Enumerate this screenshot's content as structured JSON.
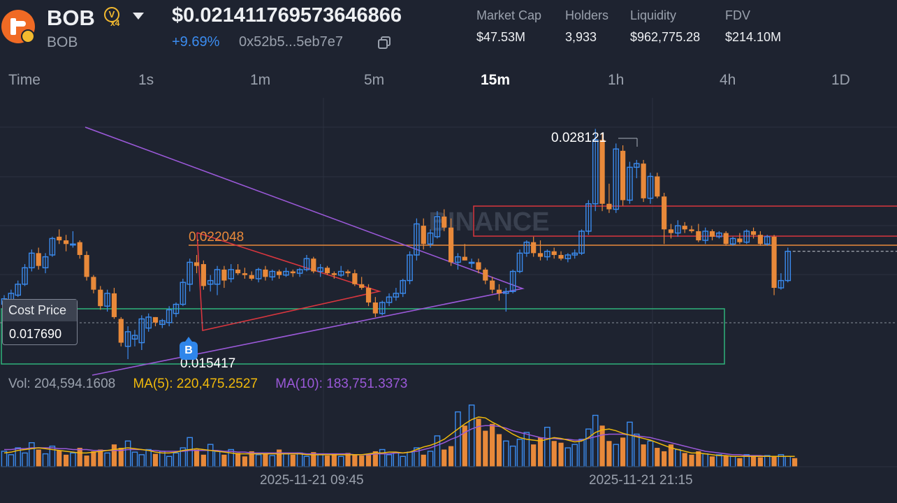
{
  "header": {
    "symbol": "BOB",
    "name": "BOB",
    "badge_v": "V",
    "badge_mult": "x4",
    "price": "$0.0214117695736468​66",
    "change": "+9.69%",
    "address": "0x52b5...5eb7e7",
    "icons": {
      "logo": "token-logo-icon",
      "dropdown": "chevron-down-icon",
      "copy": "copy-icon"
    },
    "stats": [
      {
        "label": "Market Cap",
        "value": "$47.53M"
      },
      {
        "label": "Holders",
        "value": "3,933"
      },
      {
        "label": "Liquidity",
        "value": "$962,775.28"
      },
      {
        "label": "FDV",
        "value": "$214.10M"
      }
    ]
  },
  "tabs": [
    {
      "label": "Time",
      "active": false
    },
    {
      "label": "1s",
      "active": false
    },
    {
      "label": "1m",
      "active": false
    },
    {
      "label": "5m",
      "active": false
    },
    {
      "label": "15m",
      "active": true
    },
    {
      "label": "1h",
      "active": false
    },
    {
      "label": "4h",
      "active": false
    },
    {
      "label": "1D",
      "active": false
    }
  ],
  "chart_data": {
    "type": "candlestick",
    "watermark": "BINANCE",
    "ylim": [
      0.0147,
      0.0298
    ],
    "up_color": "#3b8cf0",
    "down_color": "#e8893a",
    "cost_price": {
      "label": "Cost Price",
      "value": "0.017690",
      "level": 0.01769
    },
    "annotations": {
      "high": "0.028121",
      "low": "0.015417",
      "level": "0.022048"
    },
    "buy_marker": "B",
    "x_labels": [
      "2025-11-21 09:45",
      "2025-11-21 21:15"
    ],
    "volume_legend": {
      "vol": "Vol: 204,594.1608",
      "ma5": "MA(5): 220,475.2527",
      "ma10": "MA(10): 183,751.3373",
      "ma5_color": "#f0b90b",
      "ma10_color": "#9b59d9"
    },
    "candles": [
      {
        "o": 0.0185,
        "h": 0.019,
        "l": 0.0184,
        "c": 0.0188
      },
      {
        "o": 0.0187,
        "h": 0.0193,
        "l": 0.0186,
        "c": 0.0191
      },
      {
        "o": 0.019,
        "h": 0.0198,
        "l": 0.0189,
        "c": 0.0196
      },
      {
        "o": 0.0196,
        "h": 0.0207,
        "l": 0.0195,
        "c": 0.0205
      },
      {
        "o": 0.0205,
        "h": 0.0215,
        "l": 0.0203,
        "c": 0.0213
      },
      {
        "o": 0.0213,
        "h": 0.0216,
        "l": 0.0204,
        "c": 0.0206
      },
      {
        "o": 0.0205,
        "h": 0.0213,
        "l": 0.0202,
        "c": 0.0211
      },
      {
        "o": 0.0212,
        "h": 0.0222,
        "l": 0.0211,
        "c": 0.0221
      },
      {
        "o": 0.0222,
        "h": 0.0226,
        "l": 0.0218,
        "c": 0.022
      },
      {
        "o": 0.022,
        "h": 0.0223,
        "l": 0.0214,
        "c": 0.0218
      },
      {
        "o": 0.0218,
        "h": 0.0225,
        "l": 0.0216,
        "c": 0.0218
      },
      {
        "o": 0.0219,
        "h": 0.022,
        "l": 0.021,
        "c": 0.0212
      },
      {
        "o": 0.0212,
        "h": 0.0214,
        "l": 0.0198,
        "c": 0.02
      },
      {
        "o": 0.02,
        "h": 0.0201,
        "l": 0.0191,
        "c": 0.0193
      },
      {
        "o": 0.0193,
        "h": 0.0195,
        "l": 0.0182,
        "c": 0.0184
      },
      {
        "o": 0.0184,
        "h": 0.0193,
        "l": 0.0181,
        "c": 0.0191
      },
      {
        "o": 0.0191,
        "h": 0.0194,
        "l": 0.0177,
        "c": 0.0178
      },
      {
        "o": 0.0177,
        "h": 0.0178,
        "l": 0.0162,
        "c": 0.0164
      },
      {
        "o": 0.0162,
        "h": 0.0173,
        "l": 0.0155,
        "c": 0.017
      },
      {
        "o": 0.0166,
        "h": 0.0171,
        "l": 0.0162,
        "c": 0.0168
      },
      {
        "o": 0.0164,
        "h": 0.0179,
        "l": 0.016,
        "c": 0.0177
      },
      {
        "o": 0.0172,
        "h": 0.018,
        "l": 0.017,
        "c": 0.0178
      },
      {
        "o": 0.0178,
        "h": 0.0178,
        "l": 0.0173,
        "c": 0.0175
      },
      {
        "o": 0.0174,
        "h": 0.0177,
        "l": 0.0172,
        "c": 0.0176
      },
      {
        "o": 0.0175,
        "h": 0.0184,
        "l": 0.0173,
        "c": 0.0182
      },
      {
        "o": 0.018,
        "h": 0.0186,
        "l": 0.0178,
        "c": 0.0185
      },
      {
        "o": 0.0185,
        "h": 0.0199,
        "l": 0.0184,
        "c": 0.0197
      },
      {
        "o": 0.0196,
        "h": 0.021,
        "l": 0.0192,
        "c": 0.0208
      },
      {
        "o": 0.0208,
        "h": 0.0212,
        "l": 0.0202,
        "c": 0.0206
      },
      {
        "o": 0.0207,
        "h": 0.0209,
        "l": 0.0193,
        "c": 0.0195
      },
      {
        "o": 0.0196,
        "h": 0.0201,
        "l": 0.0192,
        "c": 0.0198
      },
      {
        "o": 0.0196,
        "h": 0.0206,
        "l": 0.019,
        "c": 0.0204
      },
      {
        "o": 0.0204,
        "h": 0.0206,
        "l": 0.0194,
        "c": 0.0198
      },
      {
        "o": 0.0199,
        "h": 0.0207,
        "l": 0.0197,
        "c": 0.0204
      },
      {
        "o": 0.0204,
        "h": 0.0207,
        "l": 0.0201,
        "c": 0.0202
      },
      {
        "o": 0.0202,
        "h": 0.0205,
        "l": 0.0199,
        "c": 0.0201
      },
      {
        "o": 0.0201,
        "h": 0.0203,
        "l": 0.0198,
        "c": 0.0199
      },
      {
        "o": 0.0199,
        "h": 0.0205,
        "l": 0.0197,
        "c": 0.0204
      },
      {
        "o": 0.0204,
        "h": 0.0206,
        "l": 0.0198,
        "c": 0.02
      },
      {
        "o": 0.02,
        "h": 0.0204,
        "l": 0.0198,
        "c": 0.0203
      },
      {
        "o": 0.0203,
        "h": 0.0204,
        "l": 0.0199,
        "c": 0.0201
      },
      {
        "o": 0.0201,
        "h": 0.0205,
        "l": 0.02,
        "c": 0.0203
      },
      {
        "o": 0.0203,
        "h": 0.0204,
        "l": 0.02,
        "c": 0.0202
      },
      {
        "o": 0.0202,
        "h": 0.0205,
        "l": 0.02,
        "c": 0.0204
      },
      {
        "o": 0.0204,
        "h": 0.0212,
        "l": 0.0203,
        "c": 0.021
      },
      {
        "o": 0.021,
        "h": 0.0211,
        "l": 0.0202,
        "c": 0.0203
      },
      {
        "o": 0.0203,
        "h": 0.0207,
        "l": 0.02,
        "c": 0.0205
      },
      {
        "o": 0.0205,
        "h": 0.0206,
        "l": 0.0201,
        "c": 0.0202
      },
      {
        "o": 0.0202,
        "h": 0.0203,
        "l": 0.0199,
        "c": 0.0201
      },
      {
        "o": 0.0201,
        "h": 0.0206,
        "l": 0.02,
        "c": 0.0203
      },
      {
        "o": 0.0203,
        "h": 0.0204,
        "l": 0.02,
        "c": 0.0202
      },
      {
        "o": 0.0202,
        "h": 0.0204,
        "l": 0.0195,
        "c": 0.0196
      },
      {
        "o": 0.0196,
        "h": 0.02,
        "l": 0.0193,
        "c": 0.0194
      },
      {
        "o": 0.0194,
        "h": 0.0196,
        "l": 0.0184,
        "c": 0.0186
      },
      {
        "o": 0.0186,
        "h": 0.0189,
        "l": 0.0178,
        "c": 0.018
      },
      {
        "o": 0.018,
        "h": 0.0187,
        "l": 0.0179,
        "c": 0.0186
      },
      {
        "o": 0.0186,
        "h": 0.0191,
        "l": 0.0184,
        "c": 0.0189
      },
      {
        "o": 0.0189,
        "h": 0.0194,
        "l": 0.0187,
        "c": 0.0191
      },
      {
        "o": 0.0191,
        "h": 0.0199,
        "l": 0.0189,
        "c": 0.0198
      },
      {
        "o": 0.0198,
        "h": 0.0214,
        "l": 0.0196,
        "c": 0.0212
      },
      {
        "o": 0.0212,
        "h": 0.0232,
        "l": 0.0209,
        "c": 0.0229
      },
      {
        "o": 0.0228,
        "h": 0.0232,
        "l": 0.0215,
        "c": 0.0218
      },
      {
        "o": 0.0218,
        "h": 0.0226,
        "l": 0.0216,
        "c": 0.0224
      },
      {
        "o": 0.0222,
        "h": 0.0236,
        "l": 0.0221,
        "c": 0.0233
      },
      {
        "o": 0.0233,
        "h": 0.0237,
        "l": 0.0225,
        "c": 0.0227
      },
      {
        "o": 0.0227,
        "h": 0.0232,
        "l": 0.0206,
        "c": 0.0208
      },
      {
        "o": 0.0208,
        "h": 0.0213,
        "l": 0.0204,
        "c": 0.0211
      },
      {
        "o": 0.0211,
        "h": 0.0218,
        "l": 0.0209,
        "c": 0.0209
      },
      {
        "o": 0.0208,
        "h": 0.021,
        "l": 0.0205,
        "c": 0.0208
      },
      {
        "o": 0.0208,
        "h": 0.021,
        "l": 0.0202,
        "c": 0.0204
      },
      {
        "o": 0.0204,
        "h": 0.0205,
        "l": 0.0196,
        "c": 0.0198
      },
      {
        "o": 0.0198,
        "h": 0.02,
        "l": 0.0191,
        "c": 0.0193
      },
      {
        "o": 0.0193,
        "h": 0.0196,
        "l": 0.0187,
        "c": 0.0191
      },
      {
        "o": 0.0191,
        "h": 0.0194,
        "l": 0.0181,
        "c": 0.0192
      },
      {
        "o": 0.0192,
        "h": 0.0204,
        "l": 0.0191,
        "c": 0.0203
      },
      {
        "o": 0.0203,
        "h": 0.0215,
        "l": 0.0202,
        "c": 0.0213
      },
      {
        "o": 0.0213,
        "h": 0.022,
        "l": 0.0211,
        "c": 0.0219
      },
      {
        "o": 0.0219,
        "h": 0.0222,
        "l": 0.0211,
        "c": 0.0213
      },
      {
        "o": 0.0213,
        "h": 0.022,
        "l": 0.0209,
        "c": 0.0211
      },
      {
        "o": 0.0211,
        "h": 0.0215,
        "l": 0.0209,
        "c": 0.0214
      },
      {
        "o": 0.0214,
        "h": 0.0216,
        "l": 0.021,
        "c": 0.0212
      },
      {
        "o": 0.0212,
        "h": 0.0214,
        "l": 0.0209,
        "c": 0.021
      },
      {
        "o": 0.021,
        "h": 0.0213,
        "l": 0.0208,
        "c": 0.0212
      },
      {
        "o": 0.0212,
        "h": 0.0215,
        "l": 0.021,
        "c": 0.0213
      },
      {
        "o": 0.0213,
        "h": 0.0226,
        "l": 0.0212,
        "c": 0.0225
      },
      {
        "o": 0.0225,
        "h": 0.0242,
        "l": 0.0223,
        "c": 0.024
      },
      {
        "o": 0.024,
        "h": 0.0281,
        "l": 0.0236,
        "c": 0.0275
      },
      {
        "o": 0.0275,
        "h": 0.0279,
        "l": 0.0236,
        "c": 0.024
      },
      {
        "o": 0.024,
        "h": 0.0251,
        "l": 0.0235,
        "c": 0.0237
      },
      {
        "o": 0.0237,
        "h": 0.0273,
        "l": 0.0235,
        "c": 0.027
      },
      {
        "o": 0.0269,
        "h": 0.0272,
        "l": 0.0239,
        "c": 0.0242
      },
      {
        "o": 0.0242,
        "h": 0.0263,
        "l": 0.024,
        "c": 0.026
      },
      {
        "o": 0.026,
        "h": 0.0264,
        "l": 0.0254,
        "c": 0.0262
      },
      {
        "o": 0.0262,
        "h": 0.0264,
        "l": 0.0241,
        "c": 0.0243
      },
      {
        "o": 0.0243,
        "h": 0.0257,
        "l": 0.024,
        "c": 0.0255
      },
      {
        "o": 0.0255,
        "h": 0.0257,
        "l": 0.0243,
        "c": 0.0244
      },
      {
        "o": 0.0244,
        "h": 0.0246,
        "l": 0.0218,
        "c": 0.0226
      },
      {
        "o": 0.0226,
        "h": 0.0229,
        "l": 0.0221,
        "c": 0.0224
      },
      {
        "o": 0.0224,
        "h": 0.0231,
        "l": 0.0222,
        "c": 0.0228
      },
      {
        "o": 0.0228,
        "h": 0.023,
        "l": 0.0224,
        "c": 0.0226
      },
      {
        "o": 0.0226,
        "h": 0.0228,
        "l": 0.0224,
        "c": 0.0225
      },
      {
        "o": 0.0225,
        "h": 0.0229,
        "l": 0.0219,
        "c": 0.022
      },
      {
        "o": 0.022,
        "h": 0.0227,
        "l": 0.0218,
        "c": 0.0225
      },
      {
        "o": 0.0225,
        "h": 0.0226,
        "l": 0.022,
        "c": 0.0222
      },
      {
        "o": 0.0222,
        "h": 0.0225,
        "l": 0.0221,
        "c": 0.0224
      },
      {
        "o": 0.0224,
        "h": 0.0225,
        "l": 0.0217,
        "c": 0.0218
      },
      {
        "o": 0.0218,
        "h": 0.0222,
        "l": 0.0217,
        "c": 0.0221
      },
      {
        "o": 0.0221,
        "h": 0.0224,
        "l": 0.0218,
        "c": 0.0219
      },
      {
        "o": 0.0219,
        "h": 0.0226,
        "l": 0.0218,
        "c": 0.0225
      },
      {
        "o": 0.0225,
        "h": 0.0227,
        "l": 0.0221,
        "c": 0.0223
      },
      {
        "o": 0.0223,
        "h": 0.0225,
        "l": 0.0217,
        "c": 0.0218
      },
      {
        "o": 0.0218,
        "h": 0.0223,
        "l": 0.0217,
        "c": 0.0222
      },
      {
        "o": 0.0222,
        "h": 0.0223,
        "l": 0.019,
        "c": 0.0194
      },
      {
        "o": 0.0194,
        "h": 0.0202,
        "l": 0.0193,
        "c": 0.0198
      },
      {
        "o": 0.0198,
        "h": 0.0216,
        "l": 0.0197,
        "c": 0.0214
      }
    ],
    "volume": [
      18,
      14,
      22,
      16,
      28,
      20,
      15,
      24,
      19,
      14,
      16,
      22,
      13,
      18,
      20,
      16,
      26,
      22,
      30,
      17,
      14,
      20,
      15,
      18,
      12,
      16,
      22,
      34,
      20,
      14,
      26,
      18,
      14,
      20,
      16,
      12,
      18,
      14,
      16,
      13,
      20,
      15,
      14,
      16,
      12,
      17,
      14,
      13,
      15,
      12,
      16,
      14,
      13,
      15,
      18,
      20,
      14,
      16,
      12,
      17,
      22,
      14,
      18,
      36,
      20,
      24,
      64,
      48,
      72,
      56,
      42,
      50,
      38,
      30,
      24,
      32,
      40,
      26,
      34,
      46,
      30,
      28,
      22,
      26,
      32,
      44,
      60,
      48,
      30,
      26,
      34,
      52,
      38,
      26,
      30,
      22,
      18,
      26,
      20,
      16,
      14,
      18,
      15,
      12,
      14,
      13,
      12,
      10,
      14,
      12,
      11,
      13,
      12,
      14,
      12,
      10
    ],
    "ma5": [
      16,
      17,
      19,
      20,
      21,
      22,
      21,
      20,
      19,
      18,
      17,
      16,
      16,
      17,
      18,
      19,
      20,
      21,
      22,
      21,
      20,
      19,
      17,
      16,
      16,
      17,
      19,
      20,
      21,
      20,
      19,
      18,
      17,
      16,
      15,
      15,
      15,
      15,
      15,
      15,
      15,
      15,
      15,
      15,
      14,
      14,
      14,
      14,
      14,
      14,
      14,
      14,
      14,
      15,
      16,
      16,
      17,
      17,
      16,
      17,
      20,
      23,
      25,
      28,
      32,
      38,
      44,
      50,
      55,
      58,
      57,
      52,
      48,
      43,
      38,
      34,
      32,
      31,
      30,
      32,
      34,
      33,
      31,
      29,
      30,
      34,
      40,
      43,
      44,
      42,
      39,
      37,
      35,
      33,
      31,
      28,
      25,
      22,
      20,
      18,
      16,
      16,
      15,
      14,
      13,
      13,
      12,
      12,
      12,
      12,
      12,
      12,
      12,
      12,
      12,
      12
    ],
    "ma10": [
      20,
      20,
      21,
      21,
      22,
      22,
      22,
      22,
      21,
      21,
      20,
      20,
      20,
      19,
      19,
      19,
      19,
      19,
      20,
      20,
      20,
      19,
      19,
      18,
      18,
      18,
      18,
      19,
      19,
      19,
      19,
      19,
      18,
      18,
      17,
      17,
      16,
      16,
      16,
      16,
      16,
      16,
      16,
      16,
      15,
      15,
      15,
      15,
      15,
      15,
      15,
      14,
      14,
      14,
      15,
      15,
      15,
      16,
      16,
      17,
      18,
      20,
      22,
      25,
      28,
      32,
      35,
      40,
      44,
      47,
      48,
      48,
      47,
      45,
      42,
      40,
      38,
      36,
      34,
      33,
      33,
      32,
      32,
      31,
      31,
      33,
      35,
      37,
      38,
      38,
      38,
      37,
      36,
      35,
      34,
      32,
      30,
      28,
      26,
      24,
      22,
      20,
      18,
      17,
      16,
      15,
      14,
      14,
      13,
      13,
      13,
      12,
      12,
      12,
      12,
      12
    ]
  }
}
